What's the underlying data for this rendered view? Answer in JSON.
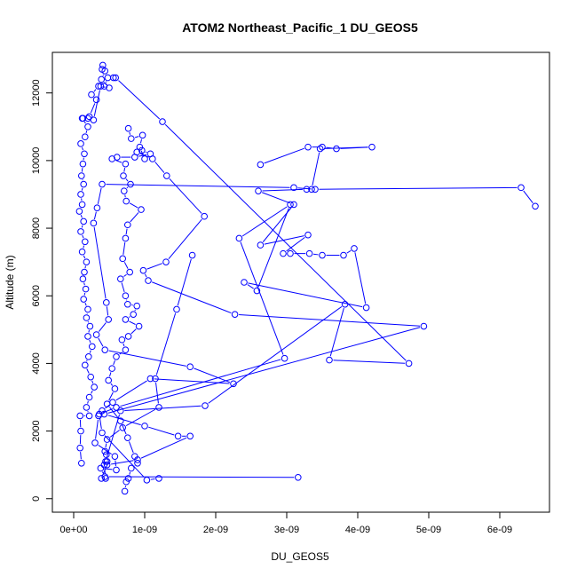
{
  "chart_data": {
    "type": "scatter",
    "title": "ATOM2 Northeast_Pacific_1 DU_GEOS5",
    "xlabel": "DU_GEOS5",
    "ylabel": "Altitude (m)",
    "xlim": [
      -3e-10,
      6.7e-09
    ],
    "ylim": [
      -400,
      13200
    ],
    "x_ticks": [
      0,
      1e-09,
      2e-09,
      3e-09,
      4e-09,
      5e-09,
      6e-09
    ],
    "x_tick_labels": [
      "0e+00",
      "1e-09",
      "2e-09",
      "3e-09",
      "4e-09",
      "5e-09",
      "6e-09"
    ],
    "y_ticks": [
      0,
      2000,
      4000,
      6000,
      8000,
      10000,
      12000
    ],
    "y_tick_labels": [
      "0",
      "2000",
      "4000",
      "6000",
      "8000",
      "10000",
      "12000"
    ],
    "grid": false,
    "series": [
      {
        "style": "line+open-circle",
        "color": "#0000ff",
        "points": [
          [
            4.1e-10,
            12820
          ],
          [
            4e-10,
            12700
          ],
          [
            4.4e-10,
            12650
          ],
          [
            3.9e-10,
            12400
          ],
          [
            5e-10,
            12150
          ],
          [
            3.5e-10,
            12200
          ],
          [
            2.5e-10,
            11950
          ],
          [
            3.2e-10,
            11800
          ],
          [
            2.2e-10,
            11300
          ],
          [
            1.2e-10,
            11250
          ],
          [
            2e-10,
            11000
          ],
          [
            1.6e-10,
            10700
          ],
          [
            1e-10,
            10500
          ],
          [
            1.5e-10,
            10200
          ],
          [
            1.3e-10,
            9900
          ],
          [
            1.1e-10,
            9550
          ],
          [
            1.4e-10,
            9300
          ],
          [
            1e-10,
            9000
          ],
          [
            1.2e-10,
            8700
          ],
          [
            8e-11,
            8500
          ],
          [
            1.4e-10,
            8200
          ],
          [
            1e-10,
            7900
          ],
          [
            1.6e-10,
            7600
          ],
          [
            1.2e-10,
            7300
          ],
          [
            1.8e-10,
            7000
          ],
          [
            1.5e-10,
            6700
          ],
          [
            1.3e-10,
            6500
          ],
          [
            1.7e-10,
            6200
          ],
          [
            1.4e-10,
            5900
          ],
          [
            2e-10,
            5600
          ],
          [
            1.8e-10,
            5350
          ],
          [
            2.3e-10,
            5100
          ],
          [
            2e-10,
            4800
          ],
          [
            2.6e-10,
            4500
          ],
          [
            2.1e-10,
            4200
          ],
          [
            1.6e-10,
            3950
          ],
          [
            2.4e-10,
            3600
          ],
          [
            2.9e-10,
            3300
          ],
          [
            2.2e-10,
            3000
          ],
          [
            1.8e-10,
            2700
          ],
          [
            2.2e-10,
            2450
          ],
          [
            9e-11,
            2450
          ],
          [
            1e-10,
            2000
          ],
          [
            9e-11,
            1500
          ],
          [
            1.1e-10,
            1050
          ]
        ]
      },
      {
        "style": "line+open-circle",
        "color": "#0000ff",
        "points": [
          [
            1.3e-10,
            11250
          ],
          [
            2e-10,
            11250
          ],
          [
            2.8e-10,
            11200
          ],
          [
            3.8e-10,
            12200
          ],
          [
            4.3e-10,
            12200
          ],
          [
            4.8e-10,
            12450
          ],
          [
            5.6e-10,
            12450
          ],
          [
            5.9e-10,
            12450
          ],
          [
            1.25e-09,
            11150
          ],
          [
            4.72e-09,
            4000
          ],
          [
            3.6e-09,
            4100
          ],
          [
            3.82e-09,
            5750
          ],
          [
            1.85e-09,
            2750
          ],
          [
            6.6e-10,
            2600
          ],
          [
            4.5e-10,
            1100
          ]
        ]
      },
      {
        "style": "line+open-circle",
        "color": "#0000ff",
        "points": [
          [
            7.7e-10,
            10950
          ],
          [
            8.1e-10,
            10650
          ],
          [
            9.7e-10,
            10750
          ],
          [
            9.3e-10,
            10400
          ],
          [
            1e-09,
            10050
          ],
          [
            9.6e-10,
            10300
          ],
          [
            1.08e-09,
            10200
          ],
          [
            8.6e-10,
            10100
          ],
          [
            6.1e-10,
            10100
          ],
          [
            5.4e-10,
            10050
          ],
          [
            7.3e-10,
            9900
          ],
          [
            7e-10,
            9550
          ],
          [
            8e-10,
            9300
          ],
          [
            7.1e-10,
            9100
          ],
          [
            7.4e-10,
            8800
          ],
          [
            9.5e-10,
            8550
          ],
          [
            7.6e-10,
            8100
          ],
          [
            7.3e-10,
            7700
          ],
          [
            6.9e-10,
            7100
          ],
          [
            7.9e-10,
            6700
          ],
          [
            6.6e-10,
            6500
          ],
          [
            7.3e-10,
            6000
          ],
          [
            7.6e-10,
            5750
          ],
          [
            8.9e-10,
            5700
          ],
          [
            8.4e-10,
            5450
          ],
          [
            7.3e-10,
            5300
          ],
          [
            9.2e-10,
            5100
          ],
          [
            7.7e-10,
            4800
          ],
          [
            6.8e-10,
            4700
          ],
          [
            7.3e-10,
            4400
          ],
          [
            6e-10,
            4200
          ],
          [
            5.4e-10,
            3850
          ],
          [
            4.9e-10,
            3500
          ],
          [
            5.8e-10,
            3250
          ],
          [
            4.7e-10,
            2800
          ],
          [
            6.6e-10,
            2300
          ],
          [
            7.6e-10,
            1800
          ],
          [
            8.6e-10,
            1250
          ],
          [
            9e-10,
            1050
          ],
          [
            8.1e-10,
            900
          ],
          [
            7.7e-10,
            600
          ],
          [
            7.4e-10,
            500
          ],
          [
            7.2e-10,
            220
          ]
        ]
      },
      {
        "style": "line+open-circle",
        "color": "#0000ff",
        "points": [
          [
            8.9e-10,
            10250
          ],
          [
            1.11e-09,
            10050
          ],
          [
            1.31e-09,
            9550
          ],
          [
            1.84e-09,
            8350
          ],
          [
            1.3e-09,
            7000
          ],
          [
            9.8e-10,
            6750
          ],
          [
            1.05e-09,
            6450
          ],
          [
            2.27e-09,
            5450
          ],
          [
            4.93e-09,
            5100
          ],
          [
            4.3e-10,
            2500
          ],
          [
            1e-09,
            2150
          ],
          [
            1.47e-09,
            1850
          ],
          [
            1.64e-09,
            1850
          ],
          [
            9e-10,
            1150
          ],
          [
            4.7e-10,
            1000
          ],
          [
            3.9e-10,
            600
          ]
        ]
      },
      {
        "style": "line+open-circle",
        "color": "#0000ff",
        "points": [
          [
            2.63e-09,
            9880
          ],
          [
            3.3e-09,
            10400
          ],
          [
            3.5e-09,
            10400
          ],
          [
            3.7e-09,
            10350
          ],
          [
            4.2e-09,
            10400
          ],
          [
            3.47e-09,
            10350
          ],
          [
            3.35e-09,
            9150
          ],
          [
            3.28e-09,
            9150
          ],
          [
            2.6e-09,
            9100
          ],
          [
            3.1e-09,
            8700
          ],
          [
            2.63e-09,
            7500
          ],
          [
            3.3e-09,
            7800
          ],
          [
            2.95e-09,
            7250
          ],
          [
            3.05e-09,
            7250
          ],
          [
            3.32e-09,
            7250
          ],
          [
            3.5e-09,
            7200
          ],
          [
            3.8e-09,
            7200
          ],
          [
            3.95e-09,
            7400
          ],
          [
            4.12e-09,
            5650
          ],
          [
            2.4e-09,
            6400
          ],
          [
            2.58e-09,
            6150
          ],
          [
            3.05e-09,
            8700
          ],
          [
            2.33e-09,
            7700
          ],
          [
            2.97e-09,
            4150
          ],
          [
            6e-10,
            2700
          ],
          [
            3.6e-10,
            2500
          ],
          [
            4e-10,
            1950
          ],
          [
            1.03e-09,
            550
          ],
          [
            1.2e-09,
            600
          ]
        ]
      },
      {
        "style": "line+open-circle",
        "color": "#0000ff",
        "points": [
          [
            6.5e-09,
            8650
          ],
          [
            6.3e-09,
            9200
          ],
          [
            3.4e-09,
            9150
          ],
          [
            3.1e-09,
            9200
          ],
          [
            4e-10,
            9300
          ],
          [
            3.3e-10,
            8600
          ],
          [
            2.8e-10,
            8150
          ],
          [
            4.6e-10,
            5800
          ],
          [
            4.9e-10,
            5300
          ],
          [
            3.2e-10,
            4850
          ],
          [
            4.4e-10,
            4400
          ],
          [
            1.64e-09,
            3900
          ],
          [
            2.25e-09,
            3400
          ],
          [
            1.08e-09,
            3550
          ],
          [
            5.5e-10,
            2850
          ],
          [
            4e-10,
            2600
          ],
          [
            3.5e-10,
            2450
          ],
          [
            3e-10,
            1650
          ],
          [
            5.8e-10,
            1250
          ],
          [
            6e-10,
            850
          ],
          [
            3.8e-10,
            900
          ],
          [
            4.4e-10,
            650
          ],
          [
            3.16e-09,
            630
          ]
        ]
      },
      {
        "style": "line+open-circle",
        "color": "#0000ff",
        "points": [
          [
            1.67e-09,
            7200
          ],
          [
            1.45e-09,
            5600
          ],
          [
            1.15e-09,
            3550
          ],
          [
            1.2e-09,
            2700
          ],
          [
            6.9e-10,
            2100
          ],
          [
            4.7e-10,
            1750
          ],
          [
            4.4e-10,
            1400
          ],
          [
            4.6e-10,
            1300
          ],
          [
            4.7e-10,
            1100
          ],
          [
            4.3e-10,
            1000
          ],
          [
            4.5e-10,
            600
          ]
        ]
      }
    ]
  }
}
